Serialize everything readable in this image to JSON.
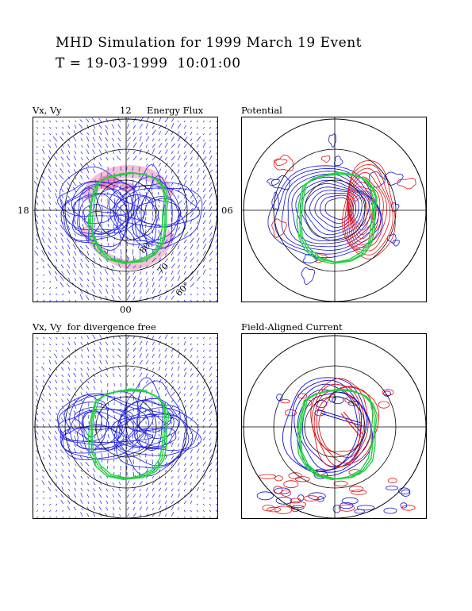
{
  "header": {
    "title": "MHD Simulation for 1999 March 19 Event",
    "time": "T = 19-03-1999  10:01:00"
  },
  "panels": [
    {
      "label": "Vx, Vy",
      "extra_label": "Energy Flux"
    },
    {
      "label": "Potential"
    },
    {
      "label": "Vx, Vy  for divergence free"
    },
    {
      "label": "Field-Aligned Current"
    }
  ],
  "ticks": {
    "top": "12",
    "left": "18",
    "right": "06",
    "bottom": "00",
    "lat80": "80",
    "lat70": "70",
    "lat60": "60°"
  },
  "colors": {
    "vector": "#2020e0",
    "contour_pos": "#e01010",
    "contour_neg": "#1010d0",
    "oval": "#20d040",
    "flux": "#f4c0d8"
  }
}
